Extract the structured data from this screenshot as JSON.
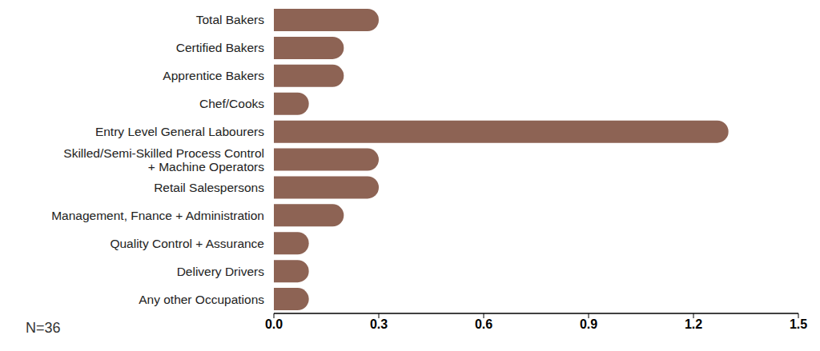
{
  "chart_data": {
    "type": "bar",
    "orientation": "horizontal",
    "categories": [
      "Total Bakers",
      "Certified Bakers",
      "Apprentice Bakers",
      "Chef/Cooks",
      "Entry Level General Labourers",
      "Skilled/Semi-Skilled Process Control + Machine Operators",
      "Retail Salespersons",
      "Management, Fnance + Administration",
      "Quality Control + Assurance",
      "Delivery Drivers",
      "Any other Occupations"
    ],
    "values": [
      0.3,
      0.2,
      0.2,
      0.1,
      1.3,
      0.3,
      0.3,
      0.2,
      0.1,
      0.1,
      0.1
    ],
    "color": "#8d6354",
    "xlim": [
      0,
      1.5
    ],
    "xticks": [
      {
        "value": 0,
        "label": "0.0"
      },
      0.3,
      0.6,
      0.9,
      1.2,
      1.5
    ],
    "grid": false,
    "annotations": [
      "N=36"
    ]
  }
}
